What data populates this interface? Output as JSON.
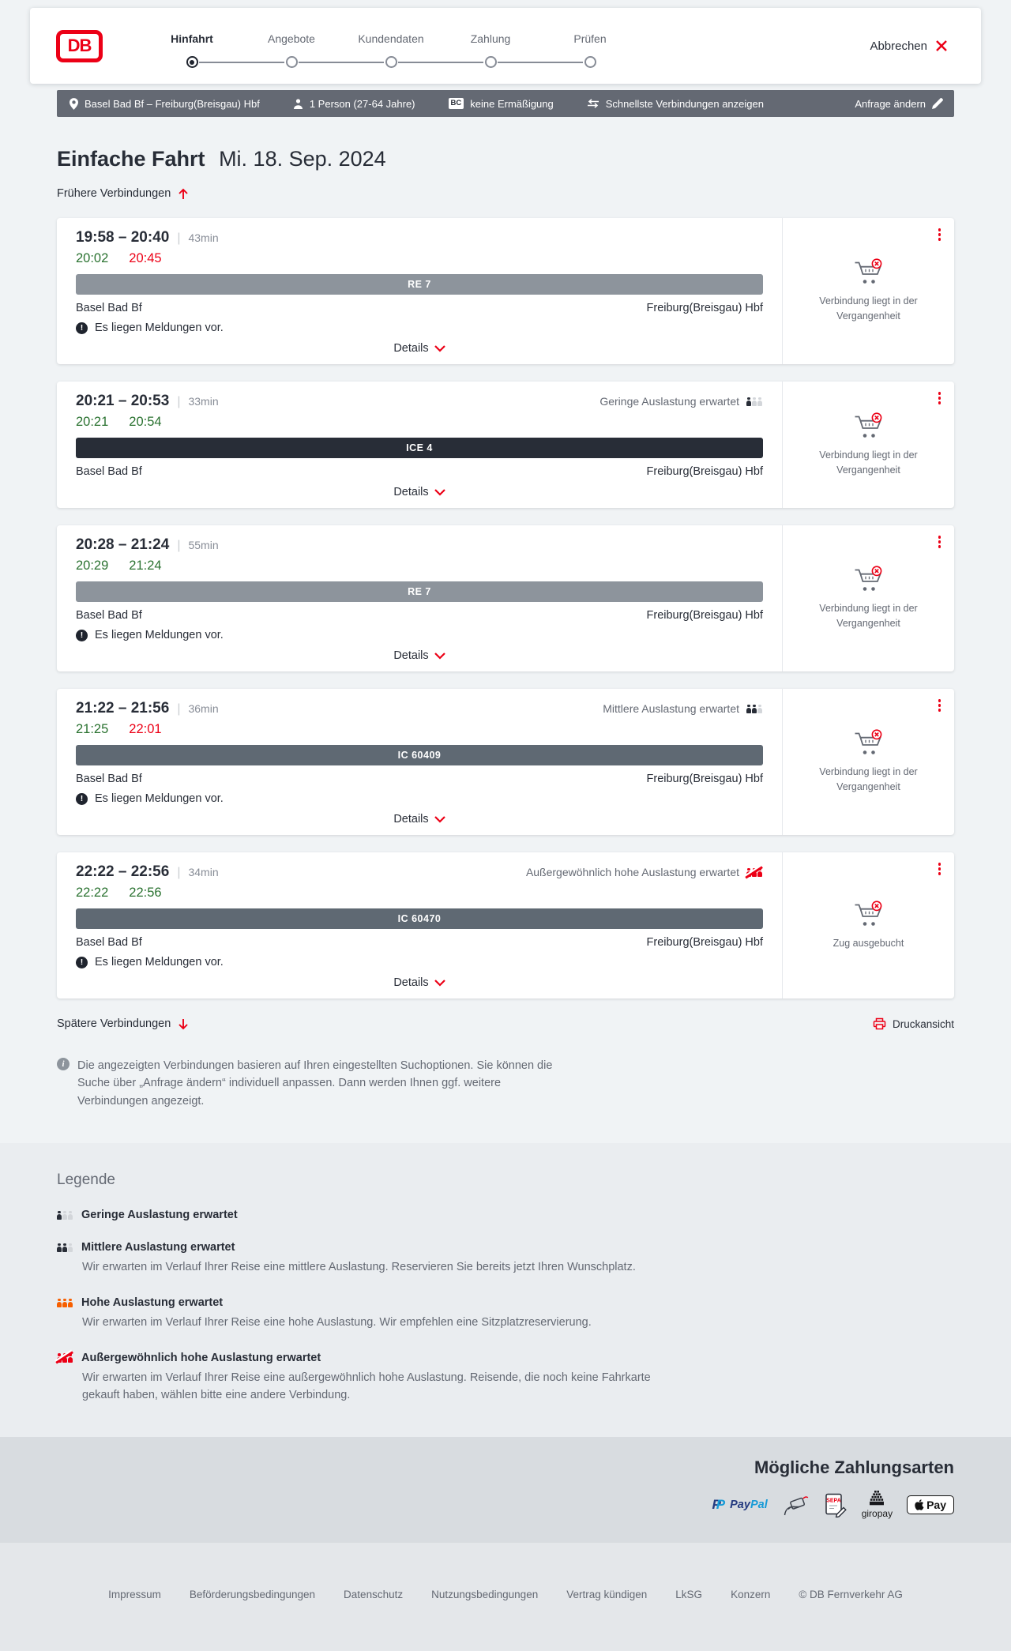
{
  "header": {
    "logo_text": "DB",
    "steps": [
      {
        "label": "Hinfahrt",
        "active": true
      },
      {
        "label": "Angebote",
        "active": false
      },
      {
        "label": "Kundendaten",
        "active": false
      },
      {
        "label": "Zahlung",
        "active": false
      },
      {
        "label": "Prüfen",
        "active": false
      }
    ],
    "cancel_label": "Abbrechen"
  },
  "query_bar": {
    "route": "Basel Bad Bf – Freiburg(Breisgau) Hbf",
    "travelers": "1 Person (27-64 Jahre)",
    "bahncard_badge": "BC",
    "discount": "keine Ermäßigung",
    "fastest": "Schnellste Verbindungen anzeigen",
    "modify": "Anfrage ändern"
  },
  "results": {
    "title": "Einfache Fahrt",
    "date": "Mi. 18. Sep. 2024",
    "earlier_label": "Frühere Verbindungen",
    "later_label": "Spätere Verbindungen",
    "print_label": "Druckansicht",
    "details_label": "Details",
    "messages_note": "Es liegen Meldungen vor.",
    "info_note": "Die angezeigten Verbindungen basieren auf Ihren eingestellten Suchoptionen. Sie können die Suche über „Anfrage ändern“ individuell anpassen. Dann werden Ihnen ggf. weitere Verbindungen angezeigt.",
    "connections": [
      {
        "planned_times": "19:58 – 20:40",
        "duration": "43min",
        "departure": "20:02",
        "departure_status": "ontime",
        "arrival": "20:45",
        "arrival_status": "delayed",
        "train": "RE 7",
        "train_style": "re",
        "from": "Basel Bad Bf",
        "to": "Freiburg(Breisgau) Hbf",
        "occupancy": null,
        "has_messages": true,
        "availability_status": "Verbindung liegt in der Vergangenheit"
      },
      {
        "planned_times": "20:21 – 20:53",
        "duration": "33min",
        "departure": "20:21",
        "departure_status": "ontime",
        "arrival": "20:54",
        "arrival_status": "ontime",
        "train": "ICE 4",
        "train_style": "ice",
        "from": "Basel Bad Bf",
        "to": "Freiburg(Breisgau) Hbf",
        "occupancy": {
          "label": "Geringe Auslastung erwartet",
          "level": "low"
        },
        "has_messages": false,
        "availability_status": "Verbindung liegt in der Vergangenheit"
      },
      {
        "planned_times": "20:28 – 21:24",
        "duration": "55min",
        "departure": "20:29",
        "departure_status": "ontime",
        "arrival": "21:24",
        "arrival_status": "ontime",
        "train": "RE 7",
        "train_style": "re",
        "from": "Basel Bad Bf",
        "to": "Freiburg(Breisgau) Hbf",
        "occupancy": null,
        "has_messages": true,
        "availability_status": "Verbindung liegt in der Vergangenheit"
      },
      {
        "planned_times": "21:22 – 21:56",
        "duration": "36min",
        "departure": "21:25",
        "departure_status": "ontime",
        "arrival": "22:01",
        "arrival_status": "delayed",
        "train": "IC 60409",
        "train_style": "ic",
        "from": "Basel Bad Bf",
        "to": "Freiburg(Breisgau) Hbf",
        "occupancy": {
          "label": "Mittlere Auslastung erwartet",
          "level": "mid"
        },
        "has_messages": true,
        "availability_status": "Verbindung liegt in der Vergangenheit"
      },
      {
        "planned_times": "22:22 – 22:56",
        "duration": "34min",
        "departure": "22:22",
        "departure_status": "ontime",
        "arrival": "22:56",
        "arrival_status": "ontime",
        "train": "IC 60470",
        "train_style": "ic",
        "from": "Basel Bad Bf",
        "to": "Freiburg(Breisgau) Hbf",
        "occupancy": {
          "label": "Außergewöhnlich hohe Auslastung erwartet",
          "level": "extreme"
        },
        "has_messages": true,
        "availability_status": "Zug ausgebucht"
      }
    ]
  },
  "icons": {
    "info_glyph": "i",
    "alert_glyph": "!"
  },
  "legend": {
    "title": "Legende",
    "items": [
      {
        "label": "Geringe Auslastung erwartet",
        "level": "low",
        "description": null
      },
      {
        "label": "Mittlere Auslastung erwartet",
        "level": "mid",
        "description": "Wir erwarten im Verlauf Ihrer Reise eine mittlere Auslastung. Reservieren Sie bereits jetzt Ihren Wunschplatz."
      },
      {
        "label": "Hohe Auslastung erwartet",
        "level": "high",
        "description": "Wir erwarten im Verlauf Ihrer Reise eine hohe Auslastung. Wir empfehlen eine Sitzplatzreservierung."
      },
      {
        "label": "Außergewöhnlich hohe Auslastung erwartet",
        "level": "extreme",
        "description": "Wir erwarten im Verlauf Ihrer Reise eine außergewöhnlich hohe Auslastung. Reisende, die noch keine Fahrkarte gekauft haben, wählen bitte eine andere Verbindung."
      }
    ]
  },
  "payments": {
    "title": "Mögliche Zahlungsarten",
    "paypal_monogram": "P",
    "paypal_pay": "Pay",
    "paypal_pal": "Pal",
    "sepa_label": "SEPA",
    "giropay_label": "giropay",
    "applepay_label": "Pay"
  },
  "footer": {
    "links": [
      "Impressum",
      "Beförderungsbedingungen",
      "Datenschutz",
      "Nutzungsbedingungen",
      "Vertrag kündigen",
      "LkSG",
      "Konzern"
    ],
    "copyright": "© DB Fernverkehr AG"
  }
}
